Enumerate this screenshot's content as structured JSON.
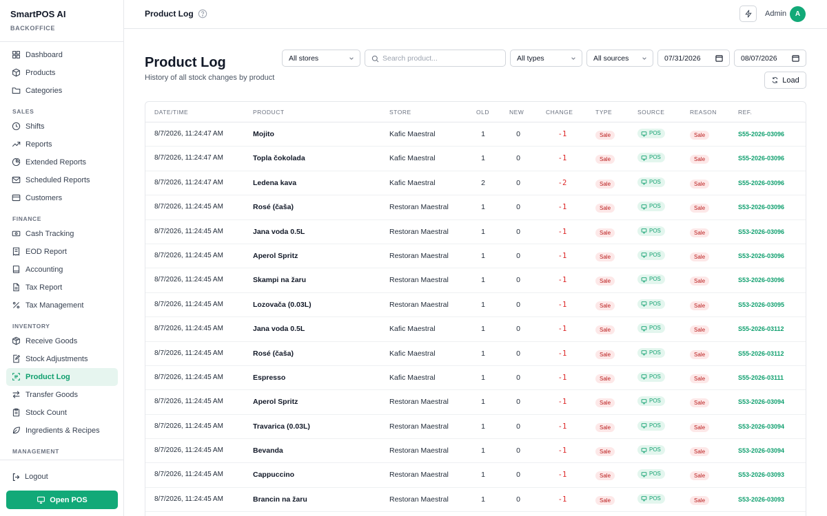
{
  "brand": {
    "name": "SmartPOS AI",
    "sub": "BACKOFFICE"
  },
  "nav": [
    {
      "type": "item",
      "label": "Dashboard",
      "icon": "grid-icon",
      "name": "sidebar-item-dashboard"
    },
    {
      "type": "item",
      "label": "Products",
      "icon": "box-icon",
      "name": "sidebar-item-products"
    },
    {
      "type": "item",
      "label": "Categories",
      "icon": "folder-icon",
      "name": "sidebar-item-categories"
    },
    {
      "type": "section",
      "label": "SALES"
    },
    {
      "type": "item",
      "label": "Shifts",
      "icon": "clock-icon",
      "name": "sidebar-item-shifts"
    },
    {
      "type": "item",
      "label": "Reports",
      "icon": "trend-icon",
      "name": "sidebar-item-reports"
    },
    {
      "type": "item",
      "label": "Extended Reports",
      "icon": "pie-icon",
      "name": "sidebar-item-extended-reports"
    },
    {
      "type": "item",
      "label": "Scheduled Reports",
      "icon": "mail-icon",
      "name": "sidebar-item-scheduled-reports"
    },
    {
      "type": "item",
      "label": "Customers",
      "icon": "card-icon",
      "name": "sidebar-item-customers"
    },
    {
      "type": "section",
      "label": "FINANCE"
    },
    {
      "type": "item",
      "label": "Cash Tracking",
      "icon": "cash-icon",
      "name": "sidebar-item-cash-tracking"
    },
    {
      "type": "item",
      "label": "EOD Report",
      "icon": "receipt-icon",
      "name": "sidebar-item-eod-report"
    },
    {
      "type": "item",
      "label": "Accounting",
      "icon": "book-icon",
      "name": "sidebar-item-accounting"
    },
    {
      "type": "item",
      "label": "Tax Report",
      "icon": "doc-icon",
      "name": "sidebar-item-tax-report"
    },
    {
      "type": "item",
      "label": "Tax Management",
      "icon": "percent-icon",
      "name": "sidebar-item-tax-management"
    },
    {
      "type": "section",
      "label": "INVENTORY"
    },
    {
      "type": "item",
      "label": "Receive Goods",
      "icon": "package-icon",
      "name": "sidebar-item-receive-goods"
    },
    {
      "type": "item",
      "label": "Stock Adjustments",
      "icon": "edit-doc-icon",
      "name": "sidebar-item-stock-adjustments"
    },
    {
      "type": "item",
      "label": "Product Log",
      "icon": "scan-icon",
      "name": "sidebar-item-product-log",
      "active": true
    },
    {
      "type": "item",
      "label": "Transfer Goods",
      "icon": "arrows-icon",
      "name": "sidebar-item-transfer-goods"
    },
    {
      "type": "item",
      "label": "Stock Count",
      "icon": "clipboard-icon",
      "name": "sidebar-item-stock-count"
    },
    {
      "type": "item",
      "label": "Ingredients & Recipes",
      "icon": "leaf-icon",
      "name": "sidebar-item-ingredients-recipes"
    },
    {
      "type": "section",
      "label": "MANAGEMENT"
    }
  ],
  "logout_label": "Logout",
  "open_pos_label": "Open POS",
  "topbar": {
    "title": "Product Log",
    "admin_label": "Admin",
    "avatar_initial": "A"
  },
  "page": {
    "title": "Product Log",
    "subtitle": "History of all stock changes by product"
  },
  "filters": {
    "store": "All stores",
    "search_placeholder": "Search product...",
    "type": "All types",
    "source": "All sources",
    "date_from": "07/31/2026",
    "date_to": "08/07/2026",
    "load_label": "Load"
  },
  "table": {
    "headers": [
      "DATE/TIME",
      "PRODUCT",
      "STORE",
      "OLD",
      "NEW",
      "CHANGE",
      "TYPE",
      "SOURCE",
      "REASON",
      "REF."
    ],
    "rows": [
      {
        "date": "8/7/2026, 11:24:47 AM",
        "product": "Mojito",
        "store": "Kafic Maestral",
        "old": "1",
        "new": "0",
        "change": "-1",
        "type": "Sale",
        "source": "POS",
        "reason": "Sale",
        "ref": "S55-2026-03096"
      },
      {
        "date": "8/7/2026, 11:24:47 AM",
        "product": "Topla čokolada",
        "store": "Kafic Maestral",
        "old": "1",
        "new": "0",
        "change": "-1",
        "type": "Sale",
        "source": "POS",
        "reason": "Sale",
        "ref": "S55-2026-03096"
      },
      {
        "date": "8/7/2026, 11:24:47 AM",
        "product": "Ledena kava",
        "store": "Kafic Maestral",
        "old": "2",
        "new": "0",
        "change": "-2",
        "type": "Sale",
        "source": "POS",
        "reason": "Sale",
        "ref": "S55-2026-03096"
      },
      {
        "date": "8/7/2026, 11:24:45 AM",
        "product": "Rosé (čaša)",
        "store": "Restoran Maestral",
        "old": "1",
        "new": "0",
        "change": "-1",
        "type": "Sale",
        "source": "POS",
        "reason": "Sale",
        "ref": "S53-2026-03096"
      },
      {
        "date": "8/7/2026, 11:24:45 AM",
        "product": "Jana voda 0.5L",
        "store": "Restoran Maestral",
        "old": "1",
        "new": "0",
        "change": "-1",
        "type": "Sale",
        "source": "POS",
        "reason": "Sale",
        "ref": "S53-2026-03096"
      },
      {
        "date": "8/7/2026, 11:24:45 AM",
        "product": "Aperol Spritz",
        "store": "Restoran Maestral",
        "old": "1",
        "new": "0",
        "change": "-1",
        "type": "Sale",
        "source": "POS",
        "reason": "Sale",
        "ref": "S53-2026-03096"
      },
      {
        "date": "8/7/2026, 11:24:45 AM",
        "product": "Skampi na žaru",
        "store": "Restoran Maestral",
        "old": "1",
        "new": "0",
        "change": "-1",
        "type": "Sale",
        "source": "POS",
        "reason": "Sale",
        "ref": "S53-2026-03096"
      },
      {
        "date": "8/7/2026, 11:24:45 AM",
        "product": "Lozovača (0.03L)",
        "store": "Restoran Maestral",
        "old": "1",
        "new": "0",
        "change": "-1",
        "type": "Sale",
        "source": "POS",
        "reason": "Sale",
        "ref": "S53-2026-03095"
      },
      {
        "date": "8/7/2026, 11:24:45 AM",
        "product": "Jana voda 0.5L",
        "store": "Kafic Maestral",
        "old": "1",
        "new": "0",
        "change": "-1",
        "type": "Sale",
        "source": "POS",
        "reason": "Sale",
        "ref": "S55-2026-03112"
      },
      {
        "date": "8/7/2026, 11:24:45 AM",
        "product": "Rosé (čaša)",
        "store": "Kafic Maestral",
        "old": "1",
        "new": "0",
        "change": "-1",
        "type": "Sale",
        "source": "POS",
        "reason": "Sale",
        "ref": "S55-2026-03112"
      },
      {
        "date": "8/7/2026, 11:24:45 AM",
        "product": "Espresso",
        "store": "Kafic Maestral",
        "old": "1",
        "new": "0",
        "change": "-1",
        "type": "Sale",
        "source": "POS",
        "reason": "Sale",
        "ref": "S55-2026-03111"
      },
      {
        "date": "8/7/2026, 11:24:45 AM",
        "product": "Aperol Spritz",
        "store": "Restoran Maestral",
        "old": "1",
        "new": "0",
        "change": "-1",
        "type": "Sale",
        "source": "POS",
        "reason": "Sale",
        "ref": "S53-2026-03094"
      },
      {
        "date": "8/7/2026, 11:24:45 AM",
        "product": "Travarica (0.03L)",
        "store": "Restoran Maestral",
        "old": "1",
        "new": "0",
        "change": "-1",
        "type": "Sale",
        "source": "POS",
        "reason": "Sale",
        "ref": "S53-2026-03094"
      },
      {
        "date": "8/7/2026, 11:24:45 AM",
        "product": "Bevanda",
        "store": "Restoran Maestral",
        "old": "1",
        "new": "0",
        "change": "-1",
        "type": "Sale",
        "source": "POS",
        "reason": "Sale",
        "ref": "S53-2026-03094"
      },
      {
        "date": "8/7/2026, 11:24:45 AM",
        "product": "Cappuccino",
        "store": "Restoran Maestral",
        "old": "1",
        "new": "0",
        "change": "-1",
        "type": "Sale",
        "source": "POS",
        "reason": "Sale",
        "ref": "S53-2026-03093"
      },
      {
        "date": "8/7/2026, 11:24:45 AM",
        "product": "Brancin na žaru",
        "store": "Restoran Maestral",
        "old": "1",
        "new": "0",
        "change": "-1",
        "type": "Sale",
        "source": "POS",
        "reason": "Sale",
        "ref": "S53-2026-03093"
      }
    ]
  },
  "colors": {
    "accent": "#12a978",
    "accent_text": "#0f9f6e",
    "negative": "#dc2626",
    "sale_badge_bg": "#fde8e8"
  }
}
